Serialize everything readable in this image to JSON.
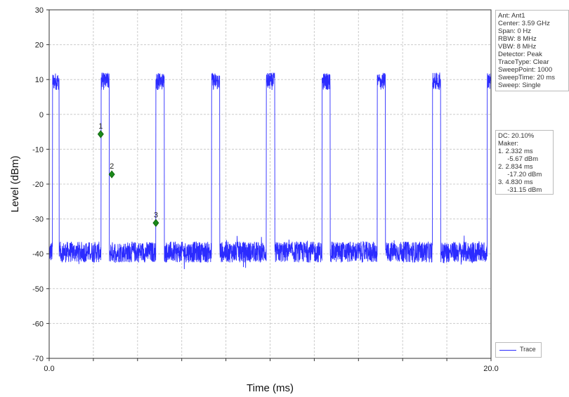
{
  "chart_data": {
    "type": "line",
    "xlabel": "Time (ms)",
    "ylabel": "Level (dBm)",
    "xlim": [
      0,
      20
    ],
    "ylim": [
      -70,
      30
    ],
    "x_ticks": [
      "0.0",
      "20.0"
    ],
    "y_ticks": [
      30,
      20,
      10,
      0,
      -10,
      -20,
      -30,
      -40,
      -50,
      -60,
      -70
    ],
    "grid": true,
    "legend_position": "bottom-right",
    "series": [
      {
        "name": "Trace",
        "color": "#2b2bff",
        "baseline_dbm": -39.5,
        "pulse_top_dbm": 10,
        "pulses_ms": [
          [
            0.15,
            0.45
          ],
          [
            2.35,
            2.72
          ],
          [
            4.83,
            5.21
          ],
          [
            7.35,
            7.72
          ],
          [
            9.83,
            10.21
          ],
          [
            12.35,
            12.72
          ],
          [
            14.85,
            15.22
          ],
          [
            17.35,
            17.72
          ],
          [
            19.83,
            20.0
          ]
        ]
      }
    ],
    "markers": [
      {
        "label": "1",
        "x": 2.332,
        "y": -5.67
      },
      {
        "label": "2",
        "x": 2.834,
        "y": -17.2
      },
      {
        "label": "3",
        "x": 4.83,
        "y": -31.15
      }
    ]
  },
  "info_panel": {
    "lines": [
      "Ant: Ant1",
      "Center: 3.59 GHz",
      "Span: 0 Hz",
      "RBW: 8 MHz",
      "VBW: 8 MHz",
      "Detector: Peak",
      "TraceType: Clear",
      "SweepPoint: 1000",
      "SweepTime: 20 ms",
      "Sweep: Single"
    ]
  },
  "marker_panel": {
    "lines": [
      "DC: 20.10%",
      "Maker:",
      "1. 2.332 ms",
      "     -5.67 dBm",
      "2. 2.834 ms",
      "     -17.20 dBm",
      "3. 4.830 ms",
      "     -31.15 dBm"
    ]
  },
  "legend": {
    "label": "Trace"
  },
  "colors": {
    "trace": "#2b2bff",
    "marker": "#1a8a1a",
    "grid": "#cccccc"
  }
}
